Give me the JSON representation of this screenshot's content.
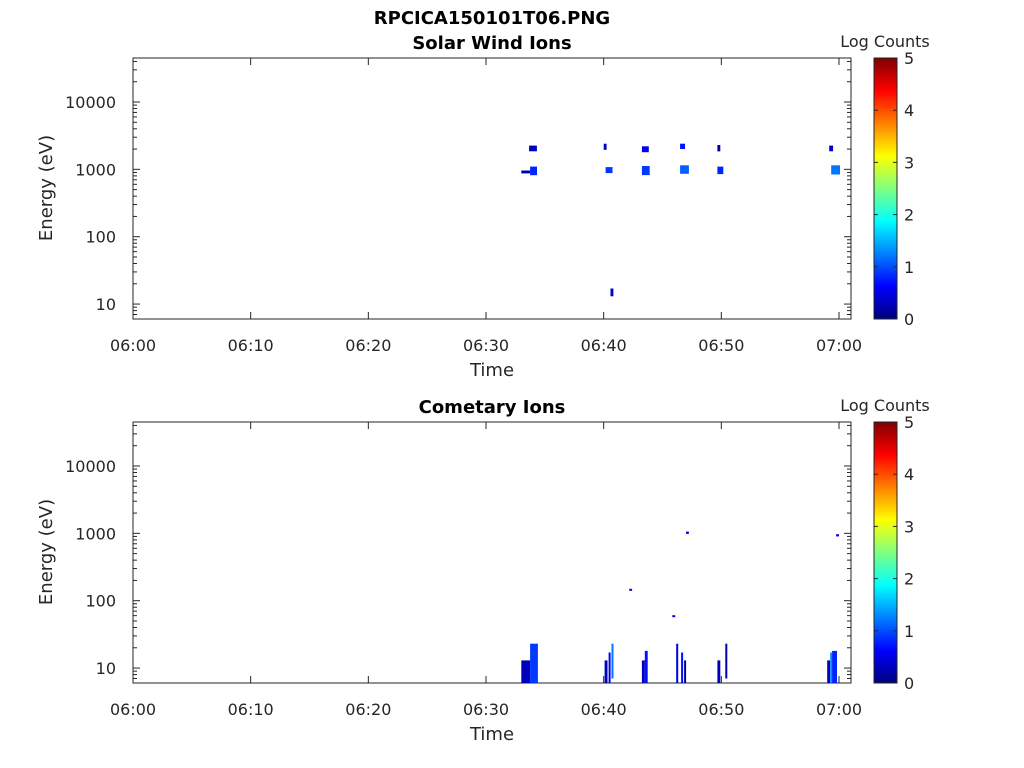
{
  "figure_title": "RPCICA150101T06.PNG",
  "colorscale": [
    "#00007f",
    "#0000ff",
    "#0080ff",
    "#00ffff",
    "#80ff80",
    "#ffff00",
    "#ff8000",
    "#ff0000",
    "#7f0000"
  ],
  "chart_data": [
    {
      "type": "heatmap",
      "title": "Solar Wind Ions",
      "xlabel": "Time",
      "ylabel": "Energy (eV)",
      "x_ticks": [
        "06:00",
        "06:10",
        "06:20",
        "06:30",
        "06:40",
        "06:50",
        "07:00"
      ],
      "y_ticks": [
        "10",
        "100",
        "1000",
        "10000"
      ],
      "xlim": [
        "06:00",
        "07:00"
      ],
      "yscale": "log",
      "ylim": [
        6,
        45000
      ],
      "grid": false,
      "colorbar": {
        "label": "Log Counts",
        "ticks": [
          "0",
          "1",
          "2",
          "3",
          "4",
          "5"
        ],
        "range": [
          0,
          5
        ]
      },
      "cells": [
        {
          "t0": "06:33:00",
          "t1": "06:33:45",
          "e0": 870,
          "e1": 960,
          "v": 0.2
        },
        {
          "t0": "06:33:45",
          "t1": "06:34:20",
          "e0": 820,
          "e1": 1100,
          "v": 0.8
        },
        {
          "t0": "06:33:40",
          "t1": "06:34:20",
          "e0": 1850,
          "e1": 2250,
          "v": 0.3
        },
        {
          "t0": "06:40:00",
          "t1": "06:40:15",
          "e0": 1950,
          "e1": 2400,
          "v": 0.3
        },
        {
          "t0": "06:40:10",
          "t1": "06:40:45",
          "e0": 880,
          "e1": 1080,
          "v": 0.9
        },
        {
          "t0": "06:40:35",
          "t1": "06:40:50",
          "e0": 13,
          "e1": 17,
          "v": 0.4
        },
        {
          "t0": "06:43:15",
          "t1": "06:43:50",
          "e0": 1800,
          "e1": 2200,
          "v": 0.6
        },
        {
          "t0": "06:43:15",
          "t1": "06:43:55",
          "e0": 820,
          "e1": 1120,
          "v": 0.9
        },
        {
          "t0": "06:46:30",
          "t1": "06:46:55",
          "e0": 2000,
          "e1": 2400,
          "v": 0.7
        },
        {
          "t0": "06:46:30",
          "t1": "06:47:15",
          "e0": 860,
          "e1": 1150,
          "v": 1.1
        },
        {
          "t0": "06:49:40",
          "t1": "06:49:55",
          "e0": 1850,
          "e1": 2300,
          "v": 0.2
        },
        {
          "t0": "06:49:40",
          "t1": "06:50:10",
          "e0": 850,
          "e1": 1100,
          "v": 0.8
        },
        {
          "t0": "06:59:10",
          "t1": "06:59:30",
          "e0": 1850,
          "e1": 2250,
          "v": 0.4
        },
        {
          "t0": "06:59:20",
          "t1": "07:00:05",
          "e0": 840,
          "e1": 1150,
          "v": 1.2
        }
      ]
    },
    {
      "type": "heatmap",
      "title": "Cometary Ions",
      "xlabel": "Time",
      "ylabel": "Energy (eV)",
      "x_ticks": [
        "06:00",
        "06:10",
        "06:20",
        "06:30",
        "06:40",
        "06:50",
        "07:00"
      ],
      "y_ticks": [
        "10",
        "100",
        "1000",
        "10000"
      ],
      "xlim": [
        "06:00",
        "07:00"
      ],
      "yscale": "log",
      "ylim": [
        6,
        45000
      ],
      "grid": false,
      "colorbar": {
        "label": "Log Counts",
        "ticks": [
          "0",
          "1",
          "2",
          "3",
          "4",
          "5"
        ],
        "range": [
          0,
          5
        ]
      },
      "cells": [
        {
          "t0": "06:33:00",
          "t1": "06:33:45",
          "e0": 6,
          "e1": 13,
          "v": 0.3
        },
        {
          "t0": "06:33:45",
          "t1": "06:34:25",
          "e0": 6,
          "e1": 23,
          "v": 0.9
        },
        {
          "t0": "06:40:05",
          "t1": "06:40:20",
          "e0": 6,
          "e1": 13,
          "v": 0.3
        },
        {
          "t0": "06:40:25",
          "t1": "06:40:35",
          "e0": 6,
          "e1": 17,
          "v": 0.6
        },
        {
          "t0": "06:40:40",
          "t1": "06:40:50",
          "e0": 7,
          "e1": 23,
          "v": 1.2
        },
        {
          "t0": "06:43:15",
          "t1": "06:43:30",
          "e0": 6,
          "e1": 13,
          "v": 0.3
        },
        {
          "t0": "06:43:30",
          "t1": "06:43:45",
          "e0": 6,
          "e1": 18,
          "v": 0.7
        },
        {
          "t0": "06:46:10",
          "t1": "06:46:20",
          "e0": 6,
          "e1": 23,
          "v": 0.5
        },
        {
          "t0": "06:46:35",
          "t1": "06:46:45",
          "e0": 6,
          "e1": 17,
          "v": 0.7
        },
        {
          "t0": "06:46:50",
          "t1": "06:47:00",
          "e0": 6,
          "e1": 13,
          "v": 0.2
        },
        {
          "t0": "06:49:40",
          "t1": "06:49:55",
          "e0": 6,
          "e1": 13,
          "v": 0.3
        },
        {
          "t0": "06:50:20",
          "t1": "06:50:30",
          "e0": 7,
          "e1": 23,
          "v": 0.2
        },
        {
          "t0": "06:59:00",
          "t1": "06:59:15",
          "e0": 6,
          "e1": 13,
          "v": 0.3
        },
        {
          "t0": "06:59:15",
          "t1": "06:59:25",
          "e0": 6,
          "e1": 17,
          "v": 1.3
        },
        {
          "t0": "06:59:25",
          "t1": "06:59:50",
          "e0": 6,
          "e1": 18,
          "v": 0.8
        },
        {
          "t0": "06:42:10",
          "t1": "06:42:25",
          "e0": 140,
          "e1": 150,
          "v": 0.5
        },
        {
          "t0": "06:45:50",
          "t1": "06:46:05",
          "e0": 57,
          "e1": 61,
          "v": 0.5
        },
        {
          "t0": "06:47:00",
          "t1": "06:47:15",
          "e0": 980,
          "e1": 1060,
          "v": 0.5
        },
        {
          "t0": "06:59:45",
          "t1": "07:00:00",
          "e0": 900,
          "e1": 970,
          "v": 0.5
        }
      ]
    }
  ]
}
